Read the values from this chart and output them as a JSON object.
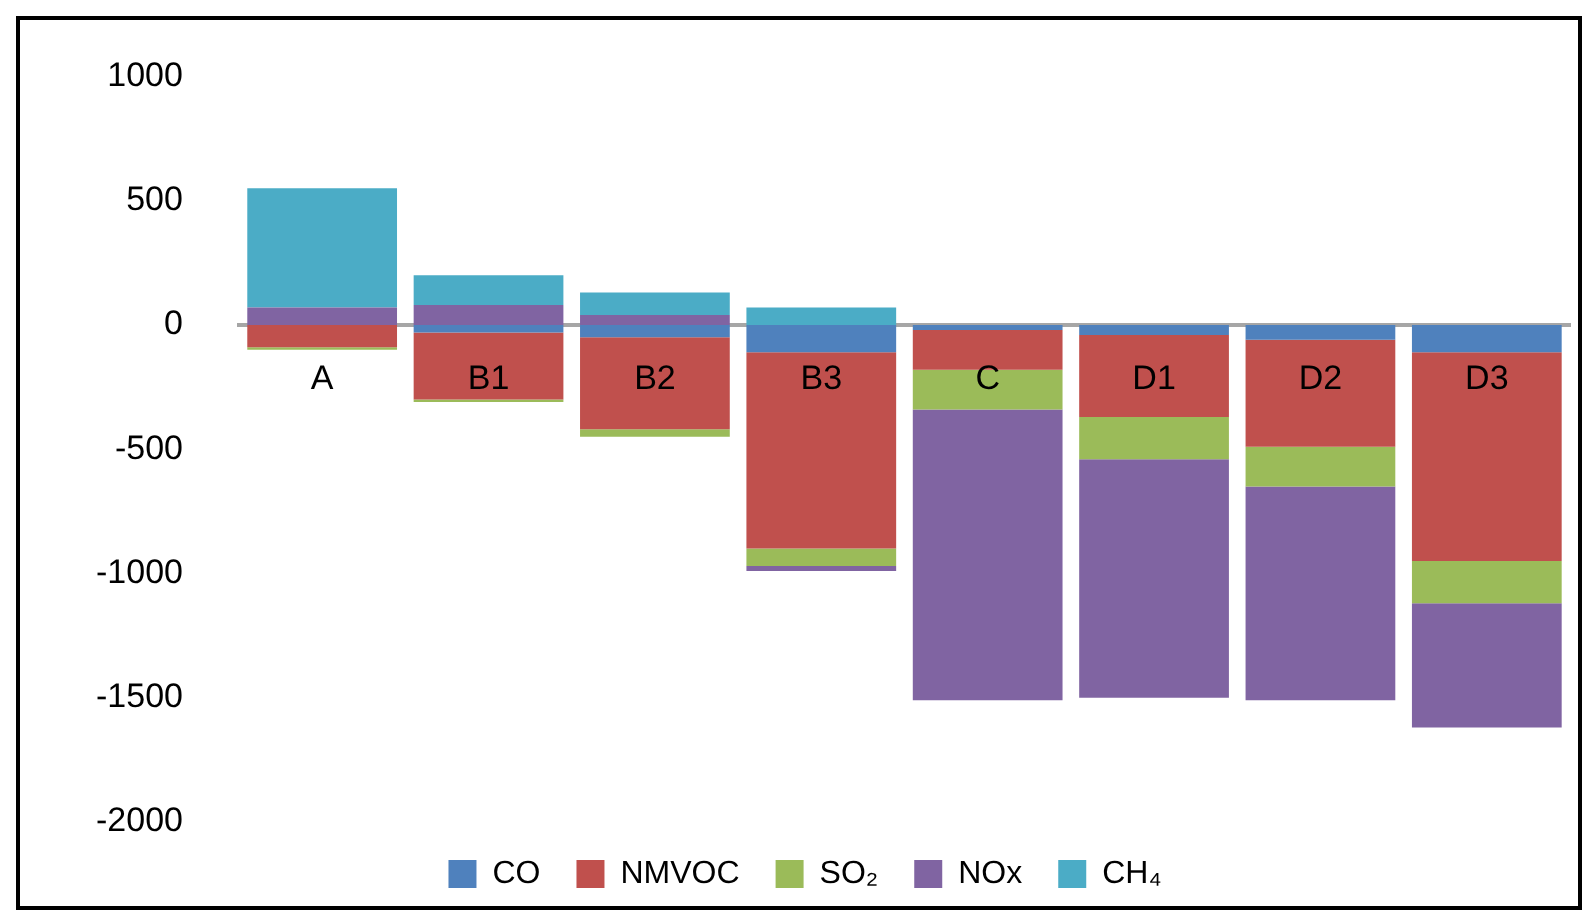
{
  "chart_data": {
    "type": "bar",
    "stacked": true,
    "categories": [
      "A",
      "B1",
      "B2",
      "B3",
      "C",
      "D1",
      "D2",
      "D3"
    ],
    "series": [
      {
        "name": "CO",
        "color": "#4f81bd",
        "values": [
          0,
          -30,
          -50,
          -110,
          -20,
          -40,
          -60,
          -110
        ]
      },
      {
        "name": "NMVOC",
        "color": "#c0504d",
        "values": [
          -90,
          -270,
          -370,
          -790,
          -160,
          -330,
          -430,
          -840
        ]
      },
      {
        "name": "SO₂",
        "color": "#9bbb59",
        "values": [
          -10,
          -10,
          -30,
          -70,
          -160,
          -170,
          -160,
          -170
        ]
      },
      {
        "name": "NOx",
        "color": "#8064a2",
        "values": [
          70,
          80,
          40,
          -20,
          -1170,
          -960,
          -860,
          -500
        ]
      },
      {
        "name": "CH₄",
        "color": "#4bacc6",
        "values": [
          480,
          120,
          90,
          70,
          0,
          0,
          0,
          0
        ]
      }
    ],
    "ylim": [
      -2000,
      1000
    ],
    "yticks": [
      -2000,
      -1500,
      -1000,
      -500,
      0,
      500,
      1000
    ],
    "grid": false,
    "legend": "bottom"
  }
}
